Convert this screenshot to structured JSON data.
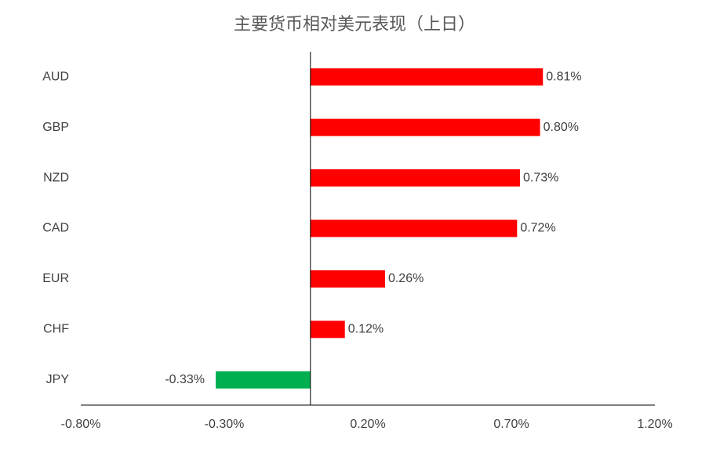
{
  "chart_data": {
    "type": "hbar",
    "title": "主要货币相对美元表现（上日）",
    "categories": [
      "AUD",
      "GBP",
      "NZD",
      "CAD",
      "EUR",
      "CHF",
      "JPY"
    ],
    "values": [
      0.81,
      0.8,
      0.73,
      0.72,
      0.26,
      0.12,
      -0.33
    ],
    "value_labels": [
      "0.81%",
      "0.80%",
      "0.73%",
      "0.72%",
      "0.26%",
      "0.12%",
      "-0.33%"
    ],
    "colors": [
      "#ff0000",
      "#ff0000",
      "#ff0000",
      "#ff0000",
      "#ff0000",
      "#ff0000",
      "#00b050"
    ],
    "xlim": [
      -0.8,
      1.2
    ],
    "xticks": [
      {
        "value": -0.8,
        "label": "-0.80%"
      },
      {
        "value": -0.3,
        "label": "-0.30%"
      },
      {
        "value": 0.2,
        "label": "0.20%"
      },
      {
        "value": 0.7,
        "label": "0.70%"
      },
      {
        "value": 1.2,
        "label": "1.20%"
      }
    ],
    "grid": false
  }
}
